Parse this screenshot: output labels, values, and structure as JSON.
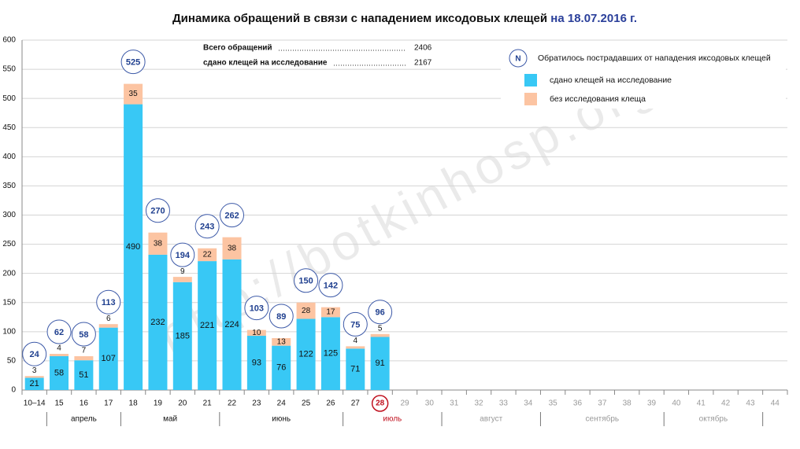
{
  "chart_data": {
    "type": "bar",
    "stacked": true,
    "title": "Динамика обращений в связи с нападением иксодовых клещей",
    "title_date": "на 18.07.2016 г.",
    "watermark": "http://botkinhosp.org",
    "categories": [
      "10–14",
      "15",
      "16",
      "17",
      "18",
      "19",
      "20",
      "21",
      "22",
      "23",
      "24",
      "25",
      "26",
      "27",
      "28",
      "29",
      "30",
      "31",
      "32",
      "33",
      "34",
      "35",
      "36",
      "37",
      "38",
      "39",
      "40",
      "41",
      "42",
      "43",
      "44"
    ],
    "months": [
      "апрель",
      "май",
      "июнь",
      "июль",
      "август",
      "сентябрь",
      "октябрь"
    ],
    "series": [
      {
        "name": "сдано клещей на исследование",
        "color": "#38c8f5",
        "values": [
          21,
          58,
          51,
          107,
          490,
          232,
          185,
          221,
          224,
          93,
          76,
          122,
          125,
          71,
          91,
          null,
          null,
          null,
          null,
          null,
          null,
          null,
          null,
          null,
          null,
          null,
          null,
          null,
          null,
          null,
          null
        ]
      },
      {
        "name": "без исследования клеща",
        "color": "#fcc4a2",
        "values": [
          3,
          4,
          7,
          6,
          35,
          38,
          9,
          22,
          38,
          10,
          13,
          28,
          17,
          4,
          5,
          null,
          null,
          null,
          null,
          null,
          null,
          null,
          null,
          null,
          null,
          null,
          null,
          null,
          null,
          null,
          null
        ]
      }
    ],
    "totals": [
      24,
      62,
      58,
      113,
      525,
      270,
      194,
      243,
      262,
      103,
      89,
      150,
      142,
      75,
      96,
      null,
      null,
      null,
      null,
      null,
      null,
      null,
      null,
      null,
      null,
      null,
      null,
      null,
      null,
      null,
      null
    ],
    "totals_legend": {
      "symbol": "N",
      "label": "Обратилось пострадавших от нападения иксодовых клещей"
    },
    "summary": [
      {
        "label": "Всего обращений",
        "value": 2406
      },
      {
        "label": "сдано клещей на исследование",
        "value": 2167
      }
    ],
    "ylim": [
      0,
      600
    ],
    "yticks": [
      0,
      50,
      100,
      150,
      200,
      250,
      300,
      350,
      400,
      450,
      500,
      550,
      600
    ],
    "grid": true
  }
}
